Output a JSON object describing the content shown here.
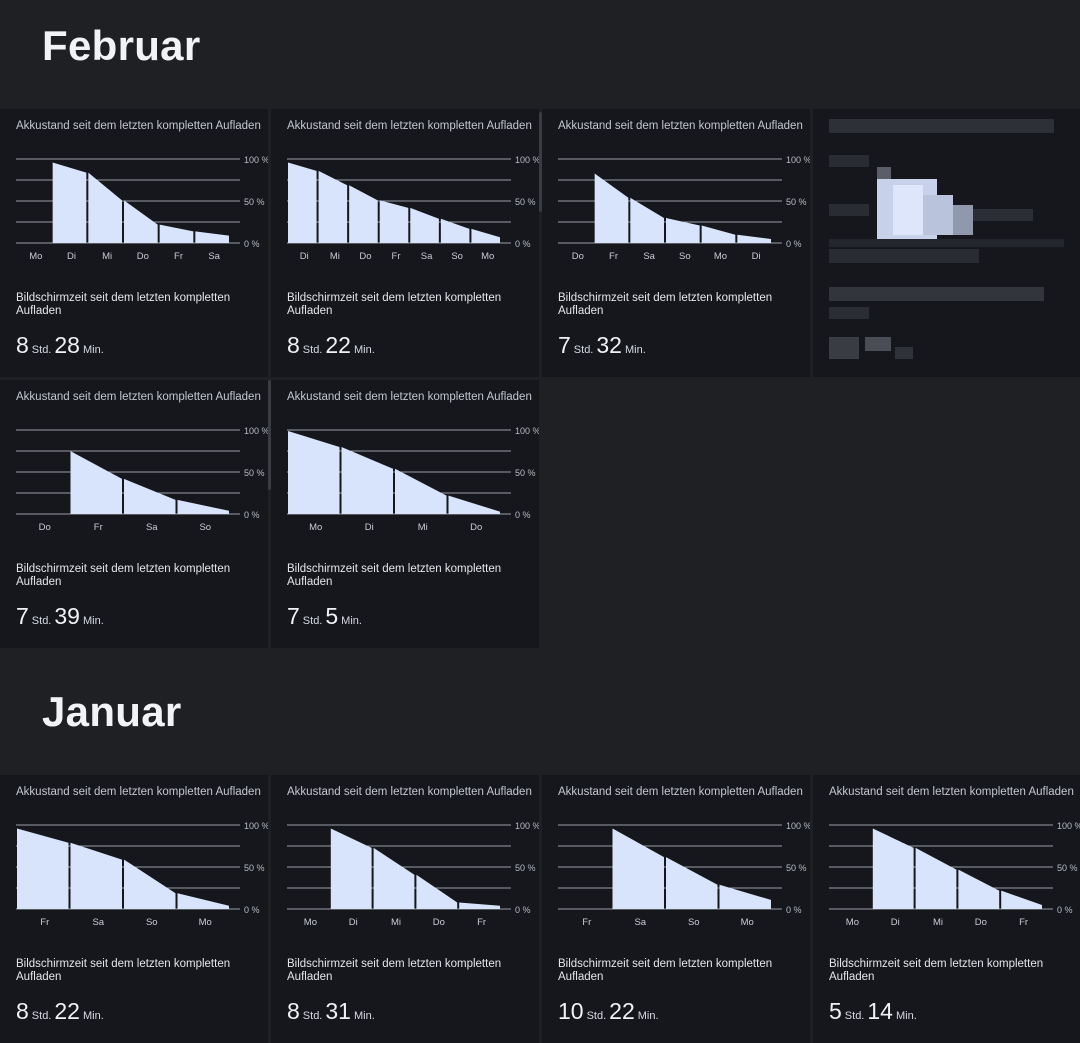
{
  "sections": [
    {
      "title": "Februar",
      "cards": [
        {
          "days": [
            "Mo",
            "Di",
            "Mi",
            "Do",
            "Fr",
            "Sa"
          ],
          "level": [
            null,
            97,
            85,
            52,
            23,
            15,
            10
          ],
          "hours": "8",
          "minutes": "28"
        },
        {
          "days": [
            "Di",
            "Mi",
            "Do",
            "Fr",
            "Sa",
            "So",
            "Mo"
          ],
          "level": [
            97,
            87,
            70,
            52,
            43,
            30,
            18,
            8
          ],
          "hours": "8",
          "minutes": "22"
        },
        {
          "days": [
            "Do",
            "Fr",
            "Sa",
            "So",
            "Mo",
            "Di"
          ],
          "level": [
            null,
            84,
            55,
            31,
            22,
            11,
            6
          ],
          "hours": "7",
          "minutes": "32"
        },
        {
          "hidden": true
        },
        {
          "days": [
            "Do",
            "Fr",
            "Sa",
            "So"
          ],
          "level": [
            null,
            76,
            43,
            18,
            5
          ],
          "hours": "7",
          "minutes": "39"
        },
        {
          "days": [
            "Mo",
            "Di",
            "Mi",
            "Do"
          ],
          "level": [
            100,
            81,
            55,
            23,
            4
          ],
          "hours": "7",
          "minutes": "5"
        }
      ]
    },
    {
      "title": "Januar",
      "cards": [
        {
          "days": [
            "Fr",
            "Sa",
            "So",
            "Mo"
          ],
          "level": [
            97,
            80,
            60,
            20,
            5
          ],
          "hours": "8",
          "minutes": "22"
        },
        {
          "days": [
            "Mo",
            "Di",
            "Mi",
            "Do",
            "Fr"
          ],
          "level": [
            null,
            97,
            74,
            42,
            9,
            5
          ],
          "hours": "8",
          "minutes": "31"
        },
        {
          "days": [
            "Fr",
            "Sa",
            "So",
            "Mo"
          ],
          "level": [
            null,
            97,
            63,
            30,
            12
          ],
          "hours": "10",
          "minutes": "22"
        },
        {
          "days": [
            "Mo",
            "Di",
            "Mi",
            "Do",
            "Fr"
          ],
          "level": [
            null,
            97,
            74,
            48,
            23,
            6
          ],
          "hours": "5",
          "minutes": "14"
        }
      ]
    }
  ],
  "labels": {
    "battery_caption": "Akkustand seit dem letzten kompletten Aufladen",
    "screen_caption": "Bildschirmzeit seit dem letzten kompletten Aufladen",
    "hours_unit": "Std.",
    "minutes_unit": "Min.",
    "axis_100": "100 %",
    "axis_50": "50 %",
    "axis_0": "0 %"
  },
  "colors": {
    "background": "#1f2024",
    "card": "#15171c",
    "fill": "#d8e4fb",
    "gridline": "#9a9ea8"
  }
}
